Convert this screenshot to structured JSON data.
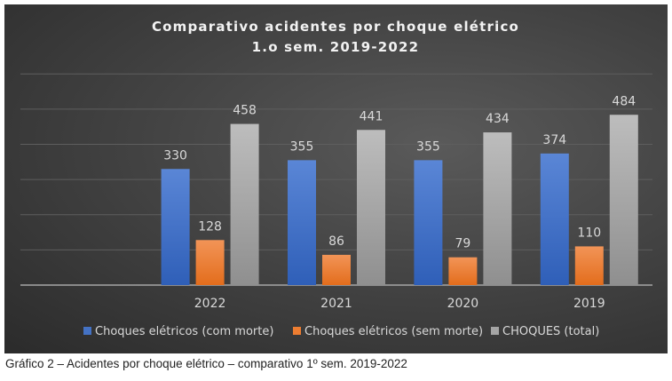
{
  "chart_data": {
    "type": "bar",
    "title": [
      "Comparativo acidentes por choque elétrico",
      "1.o sem. 2019-2022"
    ],
    "categories": [
      "",
      "2022",
      "2021",
      "2020",
      "2019"
    ],
    "series": [
      {
        "name": "Choques elétricos (com morte)",
        "color": "#4472c4",
        "values": [
          null,
          330,
          355,
          355,
          374
        ]
      },
      {
        "name": "Choques elétricos (sem morte)",
        "color": "#ed7d31",
        "values": [
          null,
          128,
          86,
          79,
          110
        ]
      },
      {
        "name": "CHOQUES (total)",
        "color": "#a5a5a5",
        "values": [
          null,
          458,
          441,
          434,
          484
        ]
      }
    ],
    "ylim": [
      0,
      600
    ],
    "grid_step": 100,
    "grid": true,
    "legend_position": "bottom",
    "xlabel": "",
    "ylabel": ""
  },
  "caption": "Gráfico 2 – Acidentes por choque elétrico – comparativo 1º sem. 2019-2022"
}
